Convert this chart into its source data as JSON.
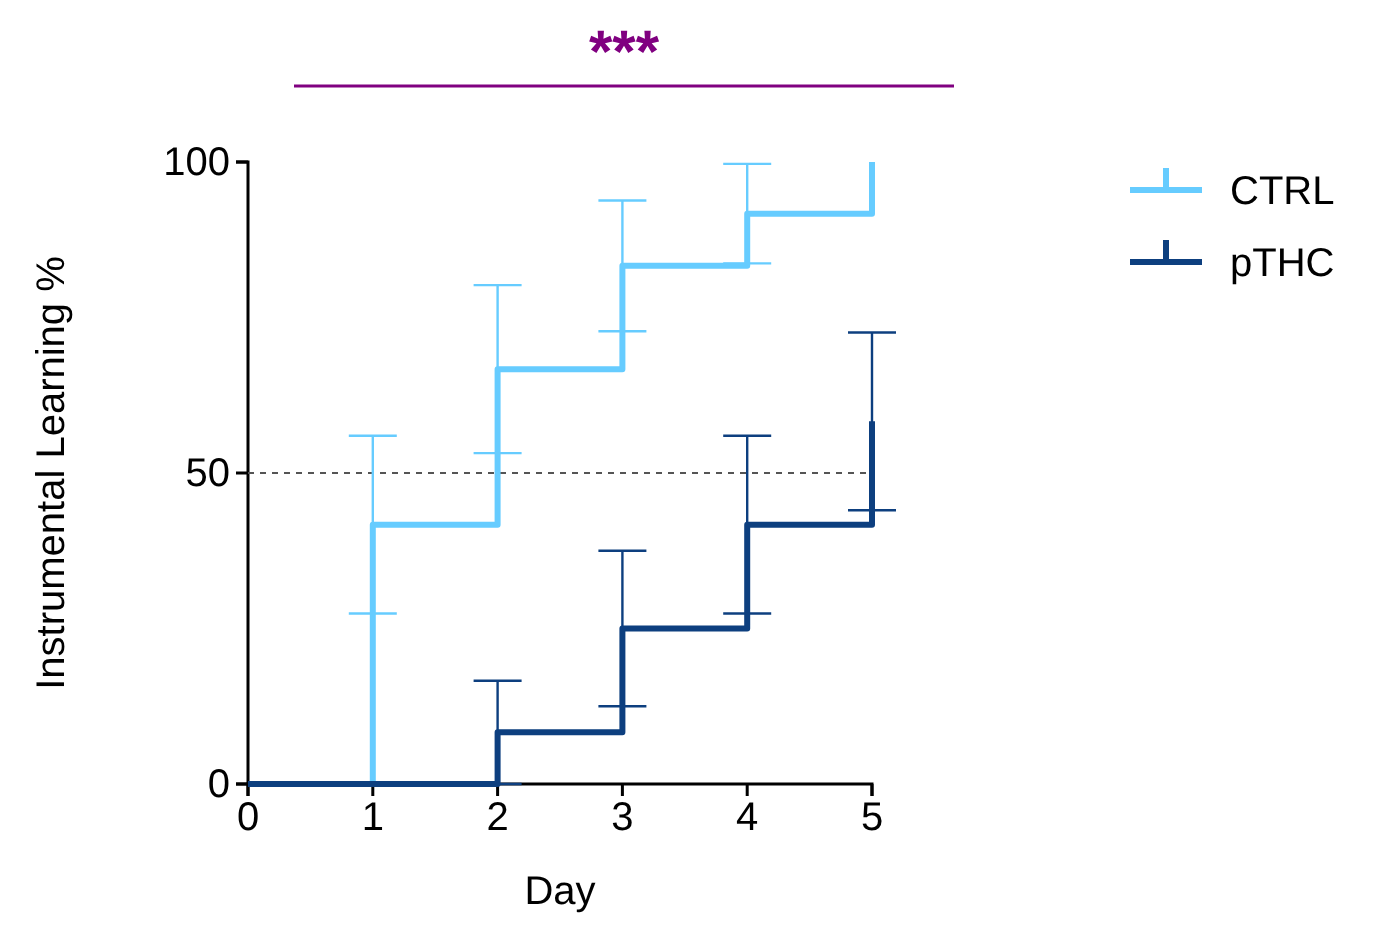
{
  "chart_data": {
    "type": "step",
    "xlabel": "Day",
    "ylabel": "Instrumental Learning %",
    "x": [
      0,
      1,
      2,
      3,
      4,
      5
    ],
    "xlim": [
      0,
      5
    ],
    "ylim": [
      0,
      100
    ],
    "xticks": [
      0,
      1,
      2,
      3,
      4,
      5
    ],
    "yticks": [
      0,
      50,
      100
    ],
    "grid": false,
    "legend": "top right",
    "line_style": "solid",
    "marker": "none",
    "series": [
      {
        "name": "CTRL",
        "color": "#66ccff",
        "values": [
          0,
          41.7,
          66.7,
          83.3,
          91.7,
          100
        ],
        "errors": [
          null,
          14.3,
          13.5,
          10.5,
          8,
          null
        ]
      },
      {
        "name": "pTHC",
        "color": "#0d3f7f",
        "values": [
          0,
          0,
          8.3,
          25,
          41.7,
          58.3
        ],
        "errors": [
          null,
          null,
          8.3,
          12.5,
          14.3,
          14.3
        ]
      }
    ],
    "ref_lines": [
      {
        "axis": "y",
        "value": 50,
        "color": "#555555",
        "line_style": "dashed"
      }
    ],
    "annotations": [
      "***"
    ]
  }
}
